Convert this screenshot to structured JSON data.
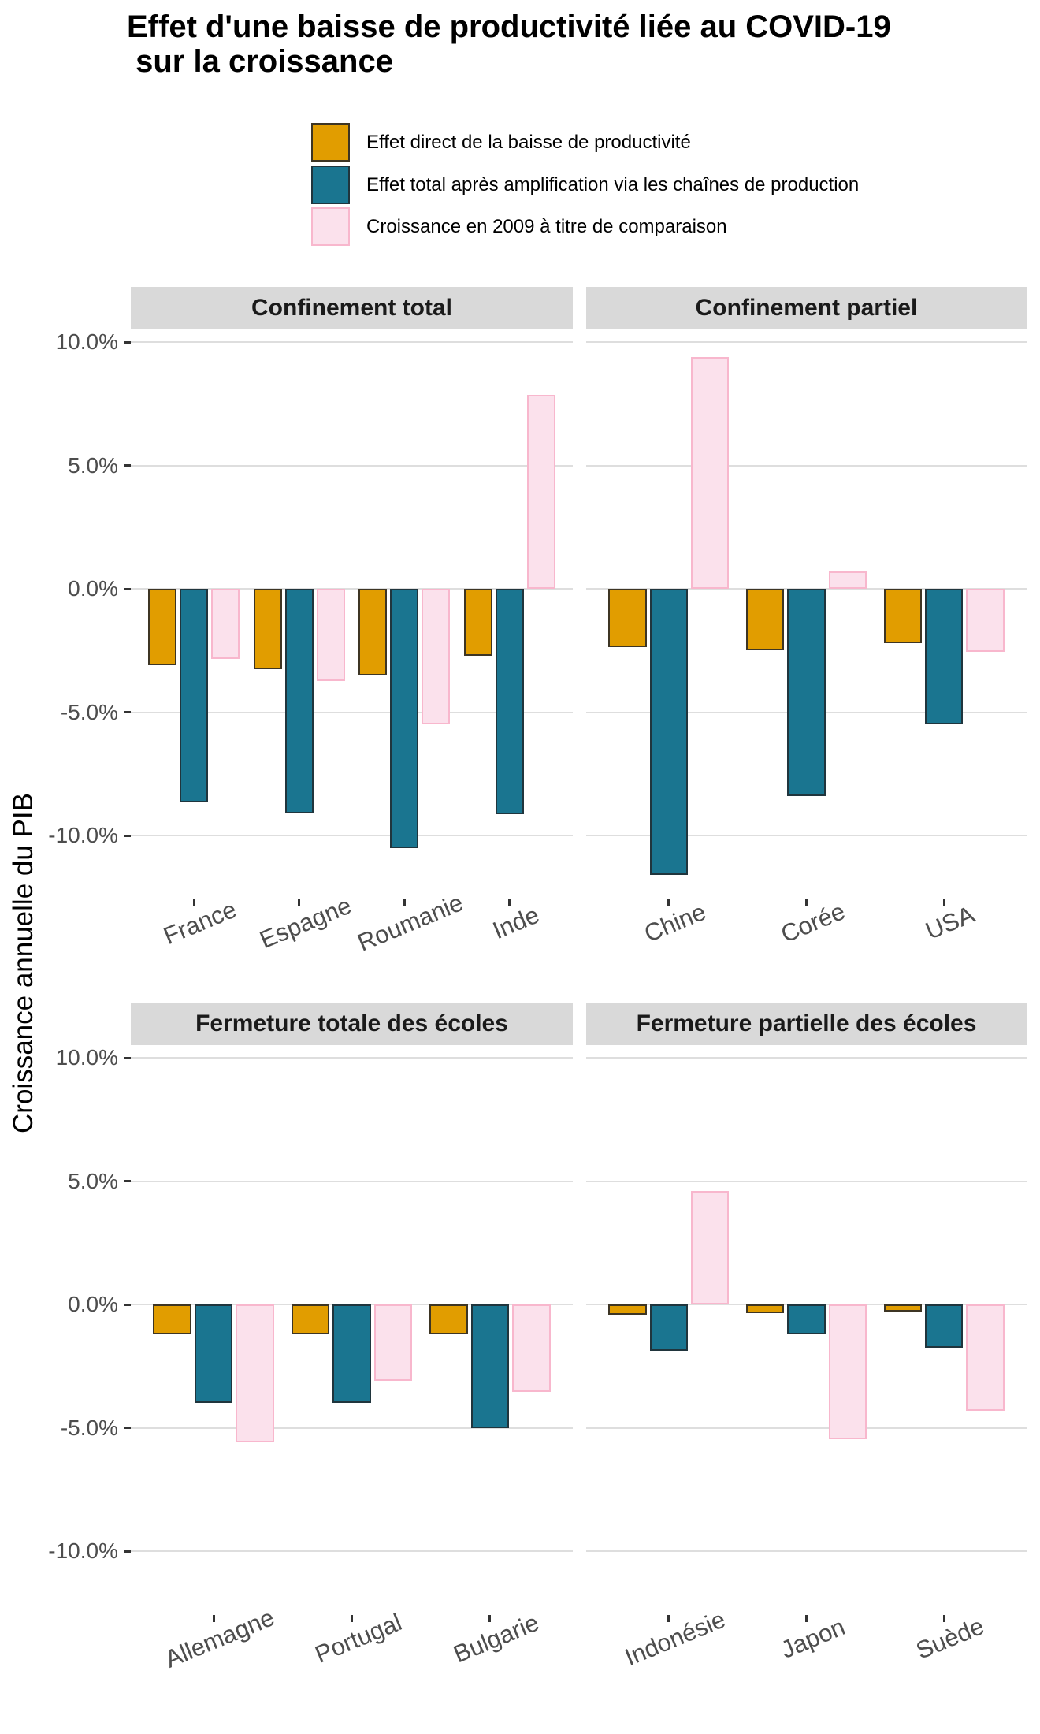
{
  "title": {
    "line1": "Effet d'une baisse de productivité liée au COVID-19",
    "line2": " sur la croissance"
  },
  "y_axis": {
    "title": "Croissance annuelle du PIB",
    "tick_labels": [
      "10.0%",
      "5.0%",
      "0.0%",
      "-5.0%",
      "-10.0%"
    ],
    "tick_values": [
      10,
      5,
      0,
      -5,
      -10
    ]
  },
  "colors": {
    "direct_fill": "#E19D00",
    "total_fill": "#1A7590",
    "growth2009_fill": "#FBE1EC",
    "growth2009_stroke": "#F8B7CD",
    "bar_stroke": "#3D3524",
    "strip_background": "#D9D9D9",
    "gridline": "#DEDEDE",
    "axis_text": "#4D4D4D",
    "tick_mark": "#333333"
  },
  "chart_data": {
    "type": "bar",
    "title": "Effet d'une baisse de productivité liée au COVID-19 sur la croissance",
    "xlabel": "",
    "ylabel": "Croissance annuelle du PIB",
    "ylim": [
      -12.6,
      10.5
    ],
    "y_tick_values": [
      10,
      5,
      0,
      -5,
      -10
    ],
    "y_tick_labels": [
      "10.0%",
      "5.0%",
      "0.0%",
      "-5.0%",
      "-10.0%"
    ],
    "grid": "y-major-only",
    "legend_position": "top",
    "series": [
      {
        "name": "Effet direct de la baisse de productivité",
        "fill": "#E19D00",
        "stroke": "#3D3524"
      },
      {
        "name": "Effet total après amplification via les chaînes de production",
        "fill": "#1A7590",
        "stroke": "#20353D"
      },
      {
        "name": "Croissance en 2009 à titre de comparaison",
        "fill": "#FBE1EC",
        "stroke": "#F8B7CD"
      }
    ],
    "facets": [
      {
        "title": "Confinement total",
        "categories": [
          "France",
          "Espagne",
          "Roumanie",
          "Inde"
        ],
        "values": [
          [
            -3.1,
            -3.25,
            -3.5,
            -2.7
          ],
          [
            -8.65,
            -9.1,
            -10.5,
            -9.15
          ],
          [
            -2.85,
            -3.75,
            -5.5,
            7.85
          ]
        ]
      },
      {
        "title": "Confinement partiel",
        "categories": [
          "Chine",
          "Corée",
          "USA"
        ],
        "values": [
          [
            -2.35,
            -2.5,
            -2.2
          ],
          [
            -11.6,
            -8.4,
            -5.5
          ],
          [
            9.4,
            0.7,
            -2.55
          ]
        ]
      },
      {
        "title": "Fermeture totale des écoles",
        "categories": [
          "Allemagne",
          "Portugal",
          "Bulgarie"
        ],
        "values": [
          [
            -1.2,
            -1.2,
            -1.2
          ],
          [
            -4.0,
            -4.0,
            -5.0
          ],
          [
            -5.6,
            -3.1,
            -3.55
          ]
        ]
      },
      {
        "title": "Fermeture partielle des écoles",
        "categories": [
          "Indonésie",
          "Japon",
          "Suède"
        ],
        "values": [
          [
            -0.4,
            -0.35,
            -0.3
          ],
          [
            -1.9,
            -1.2,
            -1.75
          ],
          [
            4.6,
            -5.45,
            -4.3
          ]
        ]
      }
    ]
  }
}
